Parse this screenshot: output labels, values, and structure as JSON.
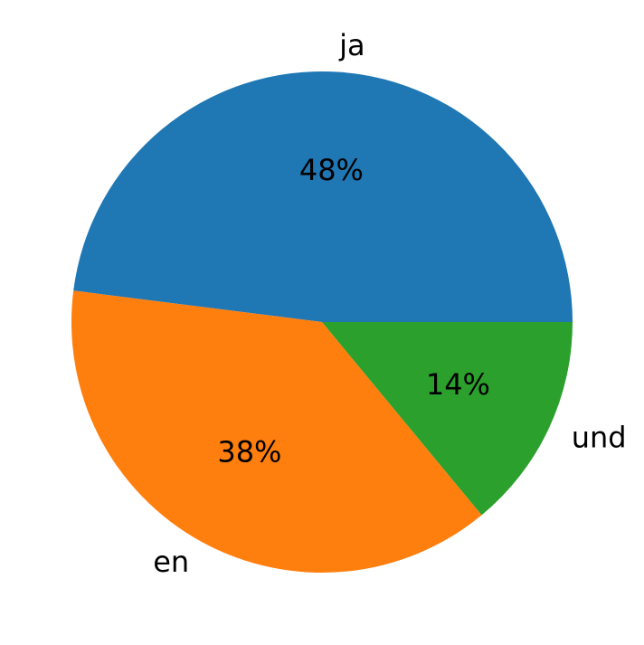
{
  "chart_data": {
    "type": "pie",
    "title": "",
    "slices": [
      {
        "label": "ja",
        "value": 48,
        "pct_label": "48%",
        "color": "#1f77b4"
      },
      {
        "label": "en",
        "value": 38,
        "pct_label": "38%",
        "color": "#ff7f0e"
      },
      {
        "label": "und",
        "value": 14,
        "pct_label": "14%",
        "color": "#2ca02c"
      }
    ],
    "start_angle_deg": 0,
    "direction": "counterclockwise",
    "legend": "none"
  }
}
